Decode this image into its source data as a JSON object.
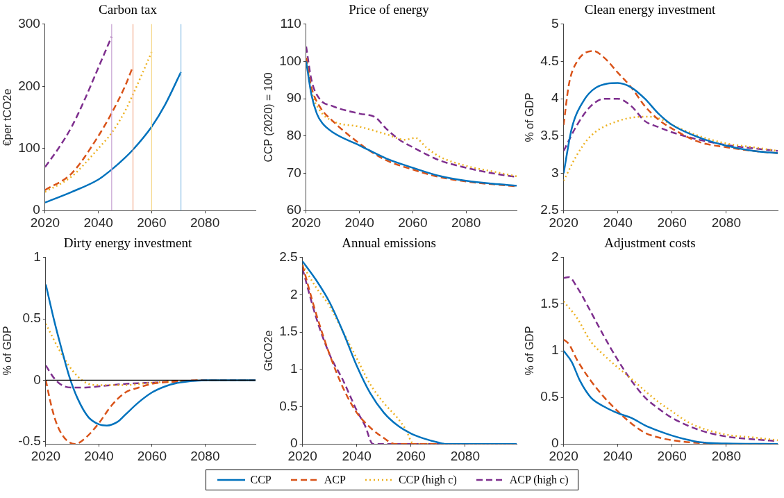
{
  "chart_data": [
    {
      "type": "line",
      "title": "Carbon tax",
      "ylabel": "€per tCO2e",
      "xlim": [
        2020,
        2099
      ],
      "xticks": [
        2020,
        2040,
        2060,
        2080
      ],
      "ylim": [
        0,
        300
      ],
      "yticks": [
        0,
        100,
        200,
        300
      ],
      "grid": false,
      "legend": "bottom",
      "marker": "none",
      "ref_lines": [
        {
          "axis": "x",
          "value": 2045,
          "color": "#c7a3d1"
        },
        {
          "axis": "x",
          "value": 2053,
          "color": "#f0a888"
        },
        {
          "axis": "x",
          "value": 2060,
          "color": "#f5d88a"
        },
        {
          "axis": "x",
          "value": 2071,
          "color": "#8cc0e4"
        }
      ],
      "series": [
        {
          "name": "CCP",
          "color": "#0072bd",
          "line_style": "solid",
          "x": [
            2020,
            2030,
            2040,
            2045,
            2050,
            2053,
            2060,
            2065,
            2071
          ],
          "values": [
            13,
            30,
            50,
            66,
            85,
            98,
            135,
            170,
            223
          ]
        },
        {
          "name": "ACP",
          "color": "#d95319",
          "line_style": "dashed",
          "x": [
            2020,
            2030,
            2040,
            2045,
            2050,
            2053
          ],
          "values": [
            33,
            60,
            120,
            157,
            200,
            232
          ]
        },
        {
          "name": "CCP (high c)",
          "color": "#edb120",
          "line_style": "dotted",
          "x": [
            2020,
            2030,
            2040,
            2045,
            2050,
            2053,
            2060
          ],
          "values": [
            30,
            55,
            100,
            125,
            160,
            187,
            255
          ]
        },
        {
          "name": "ACP (high c)",
          "color": "#7e2f8e",
          "line_style": "dashed",
          "x": [
            2020,
            2025,
            2030,
            2035,
            2040,
            2045
          ],
          "values": [
            70,
            100,
            135,
            180,
            230,
            280
          ]
        }
      ]
    },
    {
      "type": "line",
      "title": "Price of energy",
      "ylabel": "CCP (2020) = 100",
      "xlim": [
        2020,
        2099
      ],
      "xticks": [
        2020,
        2040,
        2060,
        2080
      ],
      "ylim": [
        60,
        110
      ],
      "yticks": [
        60,
        70,
        80,
        90,
        100,
        110
      ],
      "grid": false,
      "marker": "none",
      "series": [
        {
          "color": "#0072bd",
          "line_style": "solid",
          "x": [
            2020,
            2022,
            2024,
            2026,
            2030,
            2040,
            2050,
            2060,
            2070,
            2080,
            2090,
            2099
          ],
          "values": [
            100,
            91,
            86,
            83.5,
            81,
            77.5,
            74,
            71.5,
            69.3,
            68,
            67.2,
            66.7
          ]
        },
        {
          "color": "#d95319",
          "line_style": "dashed",
          "x": [
            2020,
            2022,
            2025,
            2030,
            2040,
            2045,
            2050,
            2060,
            2070,
            2080,
            2099
          ],
          "values": [
            101,
            93,
            88,
            84,
            78,
            75.5,
            73.5,
            71,
            69,
            67.8,
            66.5
          ]
        },
        {
          "color": "#edb120",
          "line_style": "dotted",
          "x": [
            2020,
            2022,
            2025,
            2030,
            2040,
            2050,
            2057,
            2061,
            2065,
            2070,
            2080,
            2090,
            2099
          ],
          "values": [
            101,
            92,
            87,
            84,
            82.5,
            80.5,
            79,
            79.5,
            77,
            74.5,
            72,
            70.5,
            69.2
          ]
        },
        {
          "color": "#7e2f8e",
          "line_style": "dashed",
          "x": [
            2020,
            2022,
            2025,
            2030,
            2040,
            2046,
            2050,
            2055,
            2060,
            2070,
            2080,
            2090,
            2099
          ],
          "values": [
            104,
            95,
            90,
            88,
            86,
            85,
            82,
            79,
            77,
            73.5,
            71.5,
            70,
            69
          ]
        }
      ]
    },
    {
      "type": "line",
      "title": "Clean energy investment",
      "ylabel": "% of GDP",
      "xlim": [
        2020,
        2099
      ],
      "xticks": [
        2020,
        2040,
        2060,
        2080
      ],
      "ylim": [
        2.5,
        5
      ],
      "yticks": [
        2.5,
        3,
        3.5,
        4,
        4.5,
        5
      ],
      "grid": false,
      "marker": "none",
      "series": [
        {
          "color": "#0072bd",
          "line_style": "solid",
          "x": [
            2020,
            2023,
            2027,
            2032,
            2040,
            2045,
            2050,
            2055,
            2060,
            2070,
            2080,
            2090,
            2099
          ],
          "values": [
            3.0,
            3.6,
            3.95,
            4.15,
            4.21,
            4.15,
            4.0,
            3.8,
            3.65,
            3.48,
            3.37,
            3.3,
            3.27
          ]
        },
        {
          "color": "#d95319",
          "line_style": "dashed",
          "x": [
            2020,
            2022,
            2025,
            2031,
            2035,
            2040,
            2045,
            2050,
            2055,
            2060,
            2070,
            2080,
            2090,
            2099
          ],
          "values": [
            3.65,
            4.2,
            4.5,
            4.64,
            4.55,
            4.35,
            4.15,
            3.9,
            3.72,
            3.6,
            3.42,
            3.35,
            3.3,
            3.27
          ]
        },
        {
          "color": "#edb120",
          "line_style": "dotted",
          "x": [
            2020,
            2025,
            2030,
            2040,
            2050,
            2055,
            2060,
            2070,
            2080,
            2090,
            2099
          ],
          "values": [
            2.9,
            3.25,
            3.5,
            3.7,
            3.76,
            3.74,
            3.65,
            3.5,
            3.4,
            3.35,
            3.3
          ]
        },
        {
          "color": "#7e2f8e",
          "line_style": "dashed",
          "x": [
            2020,
            2025,
            2030,
            2035,
            2040,
            2045,
            2050,
            2055,
            2060,
            2070,
            2080,
            2099
          ],
          "values": [
            3.3,
            3.65,
            3.9,
            4.0,
            4.0,
            3.9,
            3.7,
            3.62,
            3.55,
            3.45,
            3.38,
            3.3
          ]
        }
      ]
    },
    {
      "type": "line",
      "title": "Dirty energy investment",
      "ylabel": "% of GDP",
      "xlim": [
        2020,
        2099
      ],
      "xticks": [
        2020,
        2040,
        2060,
        2080
      ],
      "ylim": [
        -0.52,
        1
      ],
      "yticks": [
        -0.5,
        0,
        0.5,
        1
      ],
      "grid": false,
      "marker": "none",
      "ref_lines": [
        {
          "axis": "y",
          "value": 0,
          "color": "#000000"
        }
      ],
      "series": [
        {
          "color": "#0072bd",
          "line_style": "solid",
          "x": [
            2020,
            2023,
            2026,
            2029,
            2032,
            2036,
            2040,
            2043,
            2047,
            2050,
            2055,
            2060,
            2065,
            2070,
            2080,
            2099
          ],
          "values": [
            0.78,
            0.5,
            0.25,
            0.02,
            -0.15,
            -0.3,
            -0.36,
            -0.37,
            -0.34,
            -0.28,
            -0.18,
            -0.1,
            -0.05,
            -0.02,
            0,
            0
          ]
        },
        {
          "color": "#d95319",
          "line_style": "dashed",
          "x": [
            2020,
            2022,
            2024,
            2027,
            2031,
            2035,
            2040,
            2045,
            2050,
            2055,
            2060,
            2070,
            2080,
            2099
          ],
          "values": [
            0,
            -0.2,
            -0.35,
            -0.47,
            -0.52,
            -0.47,
            -0.35,
            -0.2,
            -0.1,
            -0.06,
            -0.03,
            -0.01,
            0,
            0
          ]
        },
        {
          "color": "#edb120",
          "line_style": "dotted",
          "x": [
            2020,
            2025,
            2030,
            2035,
            2040,
            2045,
            2050,
            2060,
            2070,
            2080,
            2099
          ],
          "values": [
            0.46,
            0.25,
            0.08,
            -0.02,
            -0.04,
            -0.04,
            -0.04,
            -0.02,
            -0.01,
            0,
            0
          ]
        },
        {
          "color": "#7e2f8e",
          "line_style": "dashed",
          "x": [
            2020,
            2023,
            2026,
            2030,
            2035,
            2040,
            2050,
            2060,
            2070,
            2080,
            2099
          ],
          "values": [
            0.12,
            0.02,
            -0.04,
            -0.06,
            -0.06,
            -0.05,
            -0.03,
            -0.02,
            -0.01,
            0,
            0
          ]
        }
      ]
    },
    {
      "type": "line",
      "title": "Annual emissions",
      "ylabel": "GtCO2e",
      "xlim": [
        2020,
        2099
      ],
      "xticks": [
        2020,
        2040,
        2060,
        2080
      ],
      "ylim": [
        0,
        2.5
      ],
      "yticks": [
        0,
        0.5,
        1,
        1.5,
        2,
        2.5
      ],
      "grid": false,
      "marker": "none",
      "series": [
        {
          "color": "#0072bd",
          "line_style": "solid",
          "x": [
            2020,
            2025,
            2030,
            2035,
            2040,
            2045,
            2050,
            2055,
            2060,
            2065,
            2070,
            2073,
            2099
          ],
          "values": [
            2.45,
            2.2,
            1.9,
            1.5,
            1.05,
            0.68,
            0.42,
            0.25,
            0.14,
            0.07,
            0.02,
            0,
            0
          ]
        },
        {
          "color": "#d95319",
          "line_style": "dashed",
          "x": [
            2020,
            2025,
            2030,
            2035,
            2040,
            2045,
            2050,
            2054,
            2099
          ],
          "values": [
            2.4,
            1.75,
            1.2,
            0.75,
            0.42,
            0.22,
            0.08,
            0,
            0
          ]
        },
        {
          "color": "#edb120",
          "line_style": "dotted",
          "x": [
            2020,
            2025,
            2030,
            2035,
            2040,
            2045,
            2050,
            2055,
            2058,
            2061,
            2099
          ],
          "values": [
            2.4,
            2.1,
            1.85,
            1.5,
            1.15,
            0.8,
            0.55,
            0.35,
            0.2,
            0,
            0
          ]
        },
        {
          "color": "#7e2f8e",
          "line_style": "dashed",
          "x": [
            2020,
            2025,
            2030,
            2035,
            2040,
            2043,
            2046,
            2099
          ],
          "values": [
            2.35,
            1.7,
            1.2,
            0.85,
            0.45,
            0.25,
            0,
            0
          ]
        }
      ]
    },
    {
      "type": "line",
      "title": "Adjustment costs",
      "ylabel": "% of GDP",
      "xlim": [
        2020,
        2099
      ],
      "xticks": [
        2020,
        2040,
        2060,
        2080
      ],
      "ylim": [
        0,
        2
      ],
      "yticks": [
        0,
        0.5,
        1,
        1.5,
        2
      ],
      "grid": false,
      "marker": "none",
      "series": [
        {
          "color": "#0072bd",
          "line_style": "solid",
          "x": [
            2020,
            2023,
            2026,
            2030,
            2035,
            2040,
            2045,
            2050,
            2055,
            2060,
            2065,
            2070,
            2080,
            2099
          ],
          "values": [
            1.0,
            0.88,
            0.68,
            0.5,
            0.4,
            0.33,
            0.28,
            0.2,
            0.14,
            0.09,
            0.05,
            0.02,
            0.005,
            0
          ]
        },
        {
          "color": "#d95319",
          "line_style": "dashed",
          "x": [
            2020,
            2022,
            2025,
            2030,
            2035,
            2040,
            2045,
            2050,
            2055,
            2060,
            2070,
            2080,
            2099
          ],
          "values": [
            1.12,
            1.07,
            0.9,
            0.68,
            0.5,
            0.35,
            0.22,
            0.12,
            0.07,
            0.04,
            0.01,
            0,
            0
          ]
        },
        {
          "color": "#edb120",
          "line_style": "dotted",
          "x": [
            2020,
            2025,
            2030,
            2035,
            2040,
            2045,
            2050,
            2055,
            2060,
            2065,
            2070,
            2080,
            2090,
            2099
          ],
          "values": [
            1.53,
            1.35,
            1.1,
            0.95,
            0.82,
            0.7,
            0.57,
            0.45,
            0.35,
            0.25,
            0.18,
            0.1,
            0.07,
            0.04
          ]
        },
        {
          "color": "#7e2f8e",
          "line_style": "dashed",
          "x": [
            2020,
            2022,
            2025,
            2030,
            2035,
            2040,
            2045,
            2050,
            2055,
            2060,
            2070,
            2080,
            2090,
            2099
          ],
          "values": [
            1.78,
            1.79,
            1.68,
            1.42,
            1.15,
            0.9,
            0.68,
            0.5,
            0.38,
            0.28,
            0.15,
            0.08,
            0.05,
            0.03
          ]
        }
      ]
    }
  ]
}
